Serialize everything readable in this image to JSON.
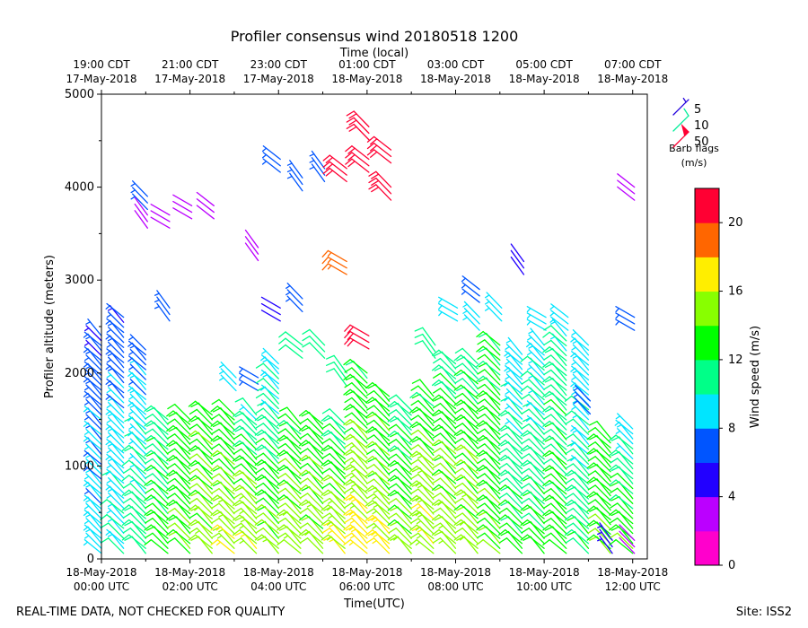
{
  "chart_data": {
    "type": "wind-barb-profile",
    "title": "Profiler consensus wind 20180518 1200",
    "xlabel": "Time(UTC)",
    "top_xlabel": "Time (local)",
    "ylabel": "Profiler altitude (meters)",
    "ylim": [
      0,
      5000
    ],
    "xlim_hours": [
      0,
      12.33
    ],
    "y_ticks": [
      "0",
      "1000",
      "2000",
      "3000",
      "4000",
      "5000"
    ],
    "y_tick_values": [
      0,
      1000,
      2000,
      3000,
      4000,
      5000
    ],
    "x_ticks": [
      {
        "hour": 0,
        "line1": "18-May-2018",
        "line2": "00:00 UTC"
      },
      {
        "hour": 2,
        "line1": "18-May-2018",
        "line2": "02:00 UTC"
      },
      {
        "hour": 4,
        "line1": "18-May-2018",
        "line2": "04:00 UTC"
      },
      {
        "hour": 6,
        "line1": "18-May-2018",
        "line2": "06:00 UTC"
      },
      {
        "hour": 8,
        "line1": "18-May-2018",
        "line2": "08:00 UTC"
      },
      {
        "hour": 10,
        "line1": "18-May-2018",
        "line2": "10:00 UTC"
      },
      {
        "hour": 12,
        "line1": "18-May-2018",
        "line2": "12:00 UTC"
      }
    ],
    "top_ticks": [
      {
        "hour": 0,
        "line1": "19:00 CDT",
        "line2": "17-May-2018"
      },
      {
        "hour": 2,
        "line1": "21:00 CDT",
        "line2": "17-May-2018"
      },
      {
        "hour": 4,
        "line1": "23:00 CDT",
        "line2": "17-May-2018"
      },
      {
        "hour": 6,
        "line1": "01:00 CDT",
        "line2": "18-May-2018"
      },
      {
        "hour": 8,
        "line1": "03:00 CDT",
        "line2": "18-May-2018"
      },
      {
        "hour": 10,
        "line1": "05:00 CDT",
        "line2": "18-May-2018"
      },
      {
        "hour": 12,
        "line1": "07:00 CDT",
        "line2": "18-May-2018"
      }
    ],
    "legend": {
      "title_line1": "Barb flags",
      "title_line2": "(m/s)",
      "placement": "top-right",
      "entries": [
        {
          "label": "5",
          "color": "#2200dd"
        },
        {
          "label": "10",
          "color": "#00ee99"
        },
        {
          "label": "50",
          "color": "#ff0033"
        }
      ]
    },
    "colorbar": {
      "label": "Wind speed (m/s)",
      "range": [
        0,
        22
      ],
      "ticks": [
        "0",
        "4",
        "8",
        "12",
        "16",
        "20"
      ],
      "tick_values": [
        0,
        4,
        8,
        12,
        16,
        20
      ],
      "colors": [
        "#ff00cc",
        "#bb00ff",
        "#2200ff",
        "#0055ff",
        "#00e5ff",
        "#00ff88",
        "#00ff00",
        "#88ff00",
        "#ffee00",
        "#ff6600",
        "#ff0033"
      ]
    },
    "series": [
      {
        "time_hours": 0.0,
        "low": {
          "top": 2400,
          "speed": [
            9,
            8,
            6
          ]
        },
        "high": []
      },
      {
        "time_hours": 0.5,
        "low": {
          "top": 2600,
          "speed": [
            10,
            9,
            6
          ]
        },
        "high": []
      },
      {
        "time_hours": 1.0,
        "low": {
          "top": 2250,
          "speed": [
            11,
            10,
            7
          ]
        },
        "high": [
          {
            "alt": 3900,
            "speed": 6
          },
          {
            "alt": 3700,
            "speed": 3
          }
        ]
      },
      {
        "time_hours": 1.5,
        "low": {
          "top": 1500,
          "speed": [
            13,
            12,
            11
          ]
        },
        "high": [
          {
            "alt": 2700,
            "speed": 6
          },
          {
            "alt": 3700,
            "speed": 3
          }
        ]
      },
      {
        "time_hours": 2.0,
        "low": {
          "top": 1500,
          "speed": [
            14,
            13,
            13
          ]
        },
        "high": [
          {
            "alt": 3800,
            "speed": 3
          }
        ]
      },
      {
        "time_hours": 2.5,
        "low": {
          "top": 1550,
          "speed": [
            15,
            14,
            13
          ]
        },
        "high": [
          {
            "alt": 3800,
            "speed": 3
          }
        ]
      },
      {
        "time_hours": 3.0,
        "low": {
          "top": 1550,
          "speed": [
            16,
            14,
            13
          ]
        },
        "high": [
          {
            "alt": 1950,
            "speed": 9
          }
        ]
      },
      {
        "time_hours": 3.5,
        "low": {
          "top": 1550,
          "speed": [
            16,
            14,
            10
          ]
        },
        "high": [
          {
            "alt": 3350,
            "speed": 3
          },
          {
            "alt": 1950,
            "speed": 6
          }
        ]
      },
      {
        "time_hours": 4.0,
        "low": {
          "top": 2100,
          "speed": [
            15,
            12,
            9
          ]
        },
        "high": [
          {
            "alt": 2700,
            "speed": 4
          },
          {
            "alt": 4300,
            "speed": 6
          }
        ]
      },
      {
        "time_hours": 4.5,
        "low": {
          "top": 1450,
          "speed": [
            15,
            14,
            12
          ]
        },
        "high": [
          {
            "alt": 2300,
            "speed": 11
          },
          {
            "alt": 2800,
            "speed": 6
          },
          {
            "alt": 4100,
            "speed": 6
          }
        ]
      },
      {
        "time_hours": 5.0,
        "low": {
          "top": 1450,
          "speed": [
            15,
            14,
            13
          ]
        },
        "high": [
          {
            "alt": 2300,
            "speed": 11
          },
          {
            "alt": 4200,
            "speed": 6
          }
        ]
      },
      {
        "time_hours": 5.5,
        "low": {
          "top": 1450,
          "speed": [
            17,
            14,
            11
          ]
        },
        "high": [
          {
            "alt": 2000,
            "speed": 11
          },
          {
            "alt": 3200,
            "speed": 19
          },
          {
            "alt": 4200,
            "speed": 20
          }
        ]
      },
      {
        "time_hours": 6.0,
        "low": {
          "top": 2000,
          "speed": [
            17,
            15,
            12
          ]
        },
        "high": [
          {
            "alt": 2400,
            "speed": 21
          },
          {
            "alt": 4300,
            "speed": 21
          },
          {
            "alt": 4650,
            "speed": 22
          }
        ]
      },
      {
        "time_hours": 6.5,
        "low": {
          "top": 1750,
          "speed": [
            17,
            14,
            13
          ]
        },
        "high": [
          {
            "alt": 4400,
            "speed": 22
          },
          {
            "alt": 4000,
            "speed": 22
          }
        ]
      },
      {
        "time_hours": 7.0,
        "low": {
          "top": 1600,
          "speed": [
            15,
            13,
            11
          ]
        },
        "high": []
      },
      {
        "time_hours": 7.5,
        "low": {
          "top": 1750,
          "speed": [
            16,
            15,
            12
          ]
        },
        "high": [
          {
            "alt": 2300,
            "speed": 10
          }
        ]
      },
      {
        "time_hours": 8.0,
        "low": {
          "top": 2100,
          "speed": [
            15,
            14,
            11
          ]
        },
        "high": [
          {
            "alt": 2700,
            "speed": 9
          }
        ]
      },
      {
        "time_hours": 8.5,
        "low": {
          "top": 2100,
          "speed": [
            15,
            14,
            11
          ]
        },
        "high": [
          {
            "alt": 2900,
            "speed": 6
          },
          {
            "alt": 2600,
            "speed": 9
          }
        ]
      },
      {
        "time_hours": 9.0,
        "low": {
          "top": 2300,
          "speed": [
            14,
            13,
            12
          ]
        },
        "high": [
          {
            "alt": 2700,
            "speed": 9
          }
        ]
      },
      {
        "time_hours": 9.5,
        "low": {
          "top": 2200,
          "speed": [
            13,
            11,
            9
          ]
        },
        "high": [
          {
            "alt": 3200,
            "speed": 4
          }
        ]
      },
      {
        "time_hours": 10.0,
        "low": {
          "top": 2300,
          "speed": [
            13,
            11,
            9
          ]
        },
        "high": [
          {
            "alt": 2600,
            "speed": 9
          }
        ]
      },
      {
        "time_hours": 10.5,
        "low": {
          "top": 2400,
          "speed": [
            13,
            12,
            10
          ]
        },
        "high": [
          {
            "alt": 2600,
            "speed": 9
          }
        ]
      },
      {
        "time_hours": 11.0,
        "low": {
          "top": 2300,
          "speed": [
            12,
            10,
            9
          ]
        },
        "high": [
          {
            "alt": 1700,
            "speed": 6
          }
        ]
      },
      {
        "time_hours": 11.5,
        "low": {
          "top": 1300,
          "speed": [
            14,
            13,
            13
          ]
        },
        "high": [
          {
            "alt": 200,
            "speed": 5
          }
        ]
      },
      {
        "time_hours": 12.0,
        "low": {
          "top": 1400,
          "speed": [
            14,
            12,
            9
          ]
        },
        "high": [
          {
            "alt": 2600,
            "speed": 6
          },
          {
            "alt": 4000,
            "speed": 3
          },
          {
            "alt": 200,
            "speed": 3
          }
        ]
      }
    ]
  },
  "footer": {
    "left": "REAL-TIME DATA, NOT CHECKED FOR QUALITY",
    "right": "Site: ISS2"
  }
}
